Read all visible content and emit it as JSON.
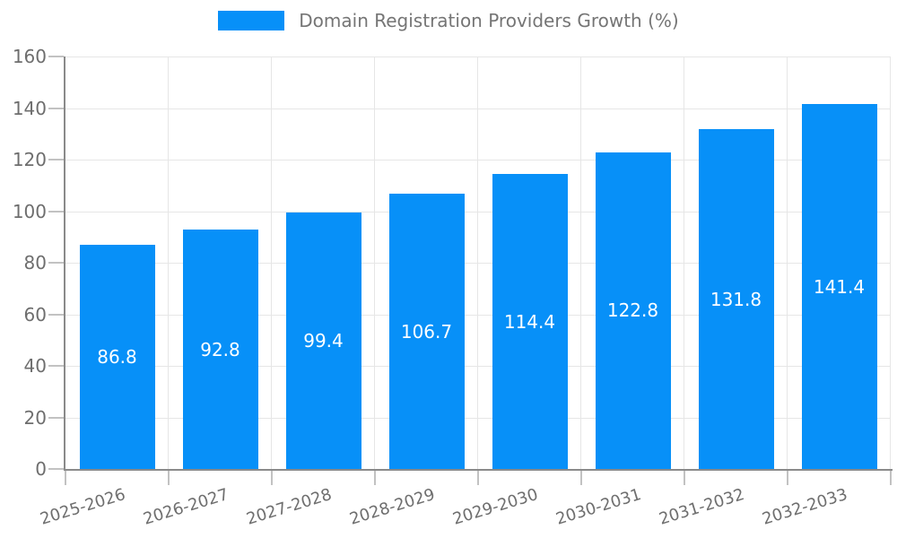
{
  "chart_data": {
    "type": "bar",
    "title": "Domain Registration Providers Growth (%)",
    "categories": [
      "2025-2026",
      "2026-2027",
      "2027-2028",
      "2028-2029",
      "2029-2030",
      "2030-2031",
      "2031-2032",
      "2032-2033"
    ],
    "values": [
      86.8,
      92.8,
      99.4,
      106.7,
      114.4,
      122.8,
      131.8,
      141.4
    ],
    "xlabel": "",
    "ylabel": "",
    "ylim": [
      0,
      160
    ],
    "y_ticks": [
      0,
      20,
      40,
      60,
      80,
      100,
      120,
      140,
      160
    ],
    "grid": true,
    "legend_position": "top",
    "bar_color": "#0790F8",
    "value_label_color": "#FFFFFF",
    "axis_text_color": "#6e6e6e"
  }
}
